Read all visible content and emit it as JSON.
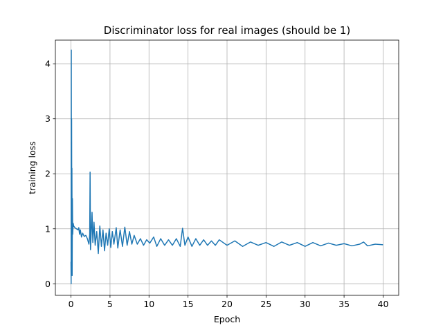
{
  "chart_data": {
    "type": "line",
    "title": "Discriminator loss for real images (should be 1)",
    "xlabel": "Epoch",
    "ylabel": "training loss",
    "xlim": [
      -2,
      42
    ],
    "ylim": [
      -0.21,
      4.43
    ],
    "xticks": [
      0,
      5,
      10,
      15,
      20,
      25,
      30,
      35,
      40
    ],
    "yticks": [
      0,
      1,
      2,
      3,
      4
    ],
    "grid": true,
    "line_color": "#1f77b4",
    "series": [
      {
        "points": [
          [
            0.0,
            0.4
          ],
          [
            0.02,
            0.0
          ],
          [
            0.04,
            4.25
          ],
          [
            0.06,
            0.3
          ],
          [
            0.08,
            3.0
          ],
          [
            0.1,
            1.2
          ],
          [
            0.12,
            2.1
          ],
          [
            0.15,
            0.15
          ],
          [
            0.18,
            1.55
          ],
          [
            0.22,
            0.9
          ],
          [
            0.28,
            1.1
          ],
          [
            0.35,
            1.05
          ],
          [
            0.5,
            1.02
          ],
          [
            0.7,
            1.0
          ],
          [
            0.9,
            0.98
          ],
          [
            1.0,
            1.02
          ],
          [
            1.1,
            0.9
          ],
          [
            1.2,
            0.98
          ],
          [
            1.35,
            0.85
          ],
          [
            1.5,
            0.92
          ],
          [
            1.7,
            0.86
          ],
          [
            1.9,
            0.88
          ],
          [
            2.1,
            0.82
          ],
          [
            2.3,
            0.72
          ],
          [
            2.4,
            0.9
          ],
          [
            2.45,
            2.03
          ],
          [
            2.5,
            0.62
          ],
          [
            2.6,
            0.95
          ],
          [
            2.7,
            1.3
          ],
          [
            2.8,
            0.75
          ],
          [
            2.95,
            1.12
          ],
          [
            3.1,
            0.7
          ],
          [
            3.3,
            0.95
          ],
          [
            3.5,
            0.55
          ],
          [
            3.7,
            1.05
          ],
          [
            3.9,
            0.68
          ],
          [
            4.1,
            0.98
          ],
          [
            4.3,
            0.6
          ],
          [
            4.5,
            0.92
          ],
          [
            4.7,
            0.7
          ],
          [
            4.9,
            1.0
          ],
          [
            5.1,
            0.66
          ],
          [
            5.3,
            0.95
          ],
          [
            5.5,
            0.72
          ],
          [
            5.8,
            1.02
          ],
          [
            6.0,
            0.65
          ],
          [
            6.3,
            0.98
          ],
          [
            6.6,
            0.68
          ],
          [
            6.9,
            1.03
          ],
          [
            7.2,
            0.7
          ],
          [
            7.5,
            0.95
          ],
          [
            7.8,
            0.72
          ],
          [
            8.1,
            0.88
          ],
          [
            8.5,
            0.72
          ],
          [
            8.9,
            0.82
          ],
          [
            9.3,
            0.7
          ],
          [
            9.7,
            0.8
          ],
          [
            10.1,
            0.74
          ],
          [
            10.6,
            0.85
          ],
          [
            11.0,
            0.68
          ],
          [
            11.5,
            0.82
          ],
          [
            12.0,
            0.7
          ],
          [
            12.5,
            0.8
          ],
          [
            13.0,
            0.7
          ],
          [
            13.5,
            0.82
          ],
          [
            14.0,
            0.68
          ],
          [
            14.3,
            1.01
          ],
          [
            14.6,
            0.7
          ],
          [
            15.0,
            0.85
          ],
          [
            15.5,
            0.68
          ],
          [
            16.0,
            0.82
          ],
          [
            16.5,
            0.7
          ],
          [
            17.0,
            0.8
          ],
          [
            17.5,
            0.7
          ],
          [
            18.0,
            0.78
          ],
          [
            18.5,
            0.7
          ],
          [
            19.0,
            0.8
          ],
          [
            20.0,
            0.7
          ],
          [
            21.0,
            0.78
          ],
          [
            22.0,
            0.68
          ],
          [
            23.0,
            0.76
          ],
          [
            24.0,
            0.7
          ],
          [
            25.0,
            0.75
          ],
          [
            26.0,
            0.68
          ],
          [
            27.0,
            0.76
          ],
          [
            28.0,
            0.7
          ],
          [
            29.0,
            0.75
          ],
          [
            30.0,
            0.68
          ],
          [
            31.0,
            0.75
          ],
          [
            32.0,
            0.69
          ],
          [
            33.0,
            0.74
          ],
          [
            34.0,
            0.7
          ],
          [
            35.0,
            0.73
          ],
          [
            36.0,
            0.69
          ],
          [
            37.0,
            0.72
          ],
          [
            37.5,
            0.76
          ],
          [
            38.0,
            0.69
          ],
          [
            39.0,
            0.72
          ],
          [
            40.0,
            0.71
          ]
        ]
      }
    ]
  }
}
